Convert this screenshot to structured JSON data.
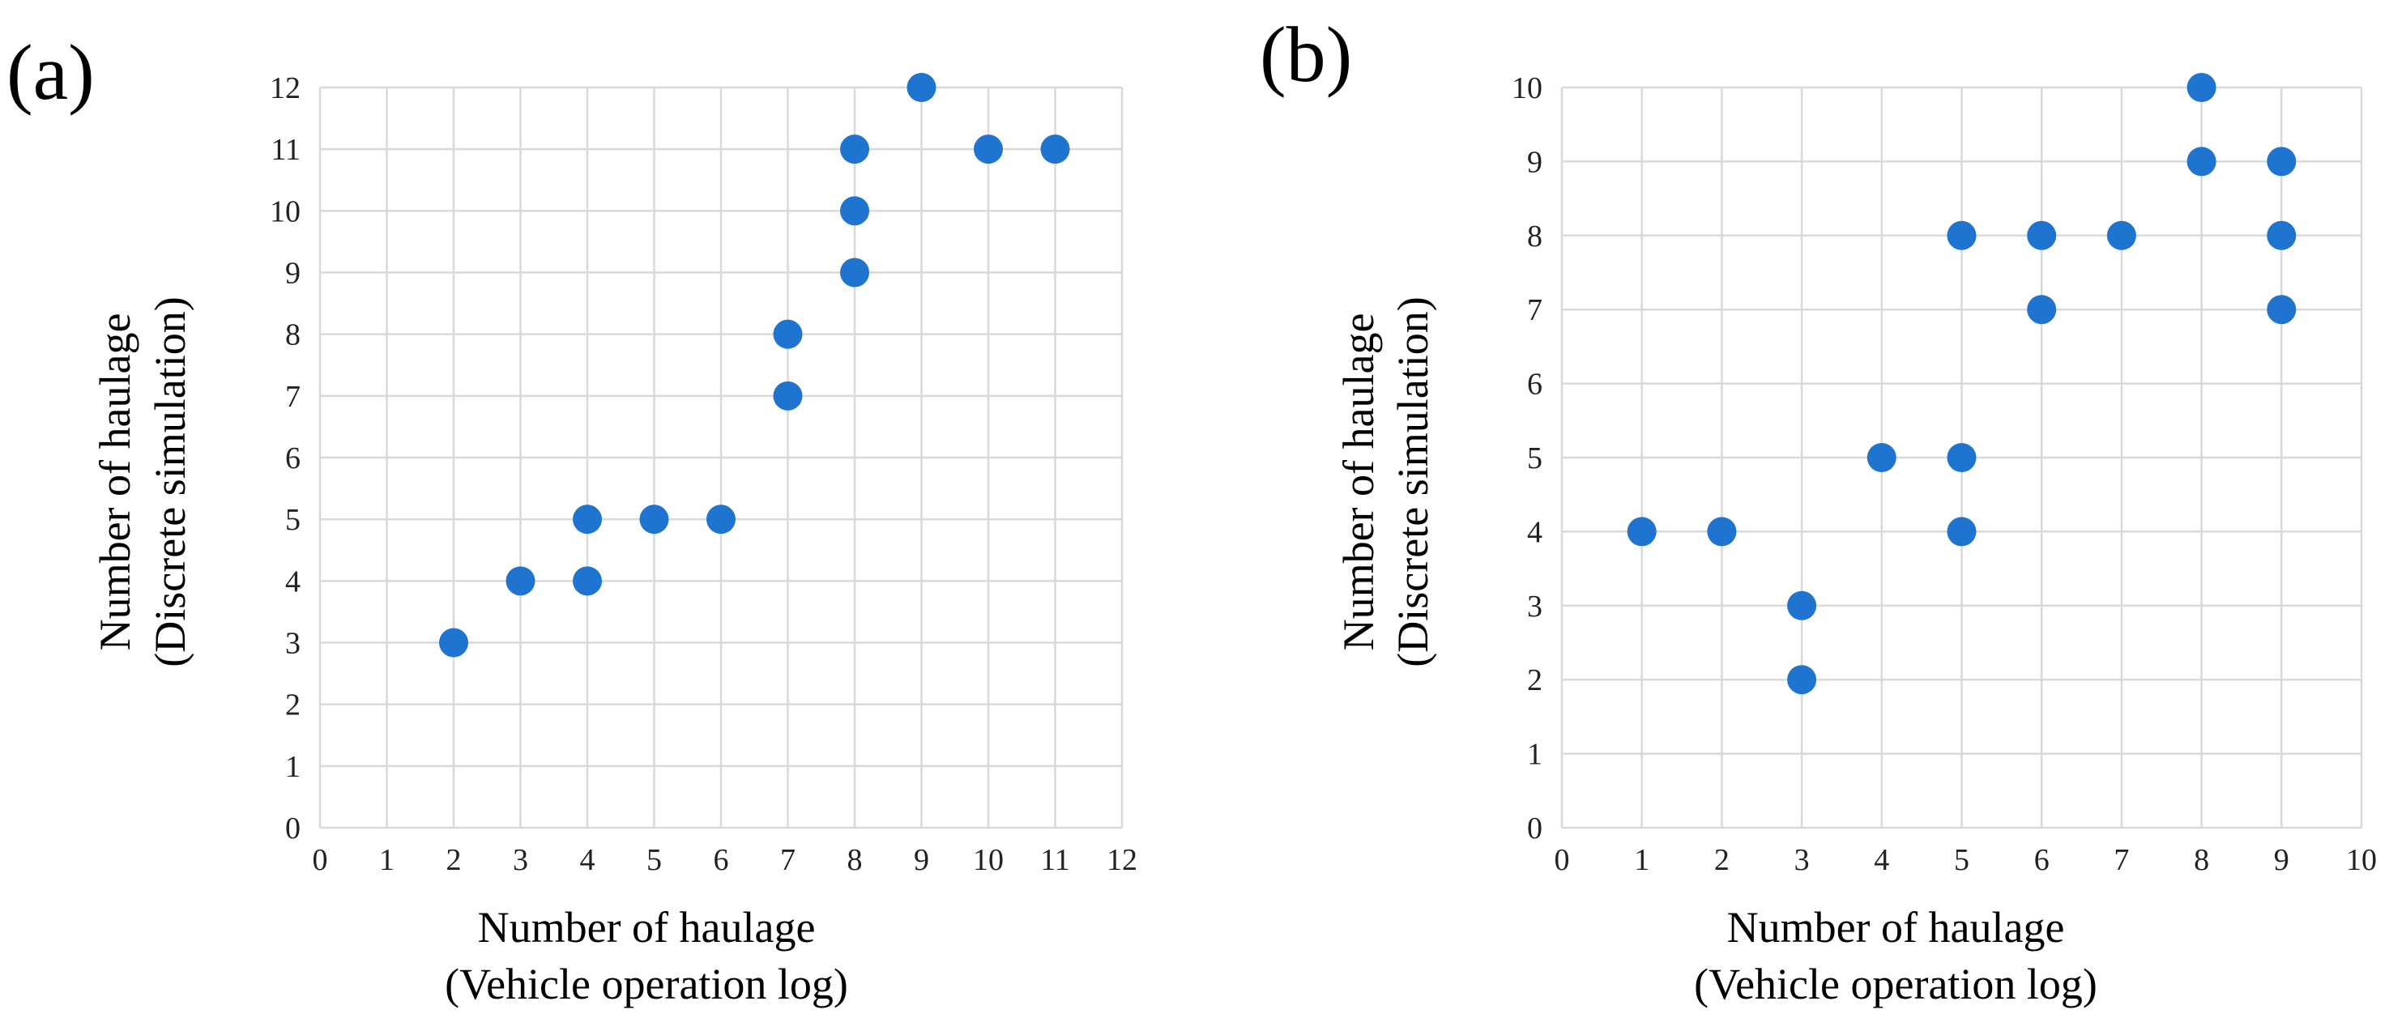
{
  "chart_data": [
    {
      "type": "scatter",
      "panel_label": "(a)",
      "xlabel_line1": "Number of haulage",
      "xlabel_line2": "(Vehicle operation log)",
      "ylabel_line1": "Number of haulage",
      "ylabel_line2": "(Discrete simulation)",
      "xlim": [
        0,
        12
      ],
      "ylim": [
        0,
        12
      ],
      "xticks": [
        0,
        1,
        2,
        3,
        4,
        5,
        6,
        7,
        8,
        9,
        10,
        11,
        12
      ],
      "yticks": [
        0,
        1,
        2,
        3,
        4,
        5,
        6,
        7,
        8,
        9,
        10,
        11,
        12
      ],
      "grid": true,
      "marker_color": "#1f74cf",
      "points": [
        {
          "x": 2,
          "y": 3
        },
        {
          "x": 3,
          "y": 4
        },
        {
          "x": 4,
          "y": 4
        },
        {
          "x": 4,
          "y": 5
        },
        {
          "x": 5,
          "y": 5
        },
        {
          "x": 6,
          "y": 5
        },
        {
          "x": 7,
          "y": 7
        },
        {
          "x": 7,
          "y": 8
        },
        {
          "x": 8,
          "y": 9
        },
        {
          "x": 8,
          "y": 10
        },
        {
          "x": 8,
          "y": 11
        },
        {
          "x": 9,
          "y": 12
        },
        {
          "x": 10,
          "y": 11
        },
        {
          "x": 11,
          "y": 11
        }
      ]
    },
    {
      "type": "scatter",
      "panel_label": "(b)",
      "xlabel_line1": "Number of haulage",
      "xlabel_line2": "(Vehicle operation log)",
      "ylabel_line1": "Number of haulage",
      "ylabel_line2": "(Discrete simulation)",
      "xlim": [
        0,
        10
      ],
      "ylim": [
        0,
        10
      ],
      "xticks": [
        0,
        1,
        2,
        3,
        4,
        5,
        6,
        7,
        8,
        9,
        10
      ],
      "yticks": [
        0,
        1,
        2,
        3,
        4,
        5,
        6,
        7,
        8,
        9,
        10
      ],
      "grid": true,
      "marker_color": "#1f74cf",
      "points": [
        {
          "x": 1,
          "y": 4
        },
        {
          "x": 2,
          "y": 4
        },
        {
          "x": 3,
          "y": 3
        },
        {
          "x": 3,
          "y": 2
        },
        {
          "x": 4,
          "y": 5
        },
        {
          "x": 5,
          "y": 5
        },
        {
          "x": 5,
          "y": 4
        },
        {
          "x": 5,
          "y": 8
        },
        {
          "x": 6,
          "y": 8
        },
        {
          "x": 6,
          "y": 7
        },
        {
          "x": 7,
          "y": 8
        },
        {
          "x": 8,
          "y": 10
        },
        {
          "x": 8,
          "y": 9
        },
        {
          "x": 9,
          "y": 9
        },
        {
          "x": 9,
          "y": 8
        },
        {
          "x": 9,
          "y": 7
        }
      ]
    }
  ]
}
